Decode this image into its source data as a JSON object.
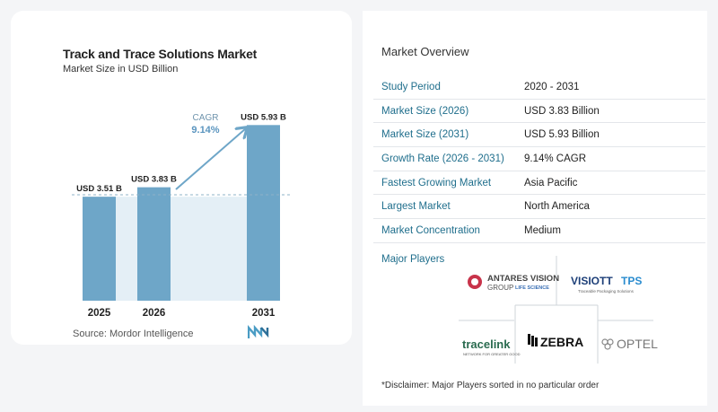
{
  "chart_data": {
    "type": "bar",
    "title": "Track and Trace Solutions Market",
    "subtitle": "Market Size in USD Billion",
    "categories": [
      "2025",
      "2026",
      "2031"
    ],
    "values": [
      3.51,
      3.83,
      5.93
    ],
    "data_labels": [
      "USD 3.51 B",
      "USD 3.83 B",
      "USD 5.93 B"
    ],
    "ylim": [
      0,
      6.5
    ],
    "cagr_label": "CAGR",
    "cagr_value": "9.14%",
    "bar_color": "#6ea6c8",
    "grid": false
  },
  "source": "Source:  Mordor Intelligence",
  "overview": {
    "title": "Market Overview",
    "rows": [
      {
        "label": "Study Period",
        "value": "2020 - 2031"
      },
      {
        "label": "Market Size (2026)",
        "value": "USD 3.83 Billion"
      },
      {
        "label": "Market Size (2031)",
        "value": "USD 5.93 Billion"
      },
      {
        "label": "Growth Rate (2026 - 2031)",
        "value": "9.14% CAGR"
      },
      {
        "label": "Fastest Growing Market",
        "value": "Asia Pacific"
      },
      {
        "label": "Largest Market",
        "value": "North America"
      },
      {
        "label": "Market Concentration",
        "value": "Medium"
      }
    ]
  },
  "players": {
    "title": "Major Players",
    "logos": {
      "antares_line1": "ANTARES VISION",
      "antares_line2": "GROUP",
      "antares_line3": "LIFE SCIENCE",
      "visiott_a": "VISIOTT",
      "visiott_b": "TPS",
      "visiott_sub": "Traceable Packaging Solutions",
      "tracelink": "tracelink",
      "tracelink_sub": "NETWORK FOR GREATER GOOD",
      "zebra": "ZEBRA",
      "optel": "OPTEL"
    }
  },
  "disclaimer": "*Disclaimer: Major Players sorted in no particular order"
}
